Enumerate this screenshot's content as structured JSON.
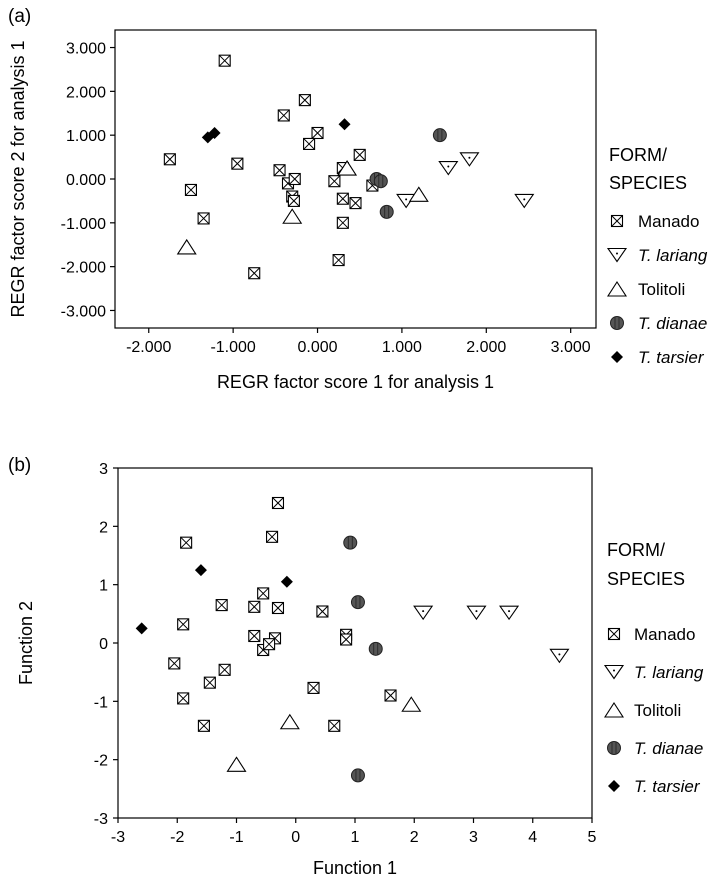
{
  "chart_data": [
    {
      "panel_label": "(a)",
      "type": "scatter",
      "xlabel": "REGR factor score 1 for analysis 1",
      "ylabel": "REGR factor score 2 for analysis 1",
      "xlim": [
        -2.4,
        3.3
      ],
      "ylim": [
        -3.4,
        3.4
      ],
      "xticks": [
        -2.0,
        -1.0,
        0.0,
        1.0,
        2.0,
        3.0
      ],
      "xtick_labels": [
        "-2.000",
        "-1.000",
        "0.000",
        "1.000",
        "2.000",
        "3.000"
      ],
      "yticks": [
        3.0,
        2.0,
        1.0,
        0.0,
        -1.0,
        -2.0,
        -3.0
      ],
      "ytick_labels": [
        "3.000",
        "2.000",
        "1.000",
        "0.000",
        "-1.000",
        "-2.000",
        "-3.000"
      ],
      "legend_title": [
        "FORM/",
        "SPECIES"
      ],
      "legend_position": "right",
      "series": [
        {
          "name": "Manado",
          "italic": false,
          "marker": "boxx",
          "x": [
            -1.1,
            -0.15,
            -0.4,
            0.0,
            -0.1,
            -1.75,
            -0.95,
            0.5,
            0.3,
            0.2,
            -0.45,
            -0.35,
            -0.27,
            -1.5,
            -0.3,
            -0.28,
            0.45,
            0.3,
            0.65,
            -1.35,
            0.3,
            -0.75,
            0.25
          ],
          "y": [
            2.7,
            1.8,
            1.45,
            1.05,
            0.8,
            0.45,
            0.35,
            0.55,
            0.25,
            -0.05,
            0.2,
            -0.1,
            0.0,
            -0.25,
            -0.4,
            -0.5,
            -0.55,
            -0.45,
            -0.15,
            -0.9,
            -1.0,
            -2.15,
            -1.85
          ]
        },
        {
          "name": "T. lariang",
          "italic": true,
          "marker": "tri-down",
          "x": [
            1.8,
            1.55,
            1.05,
            2.45
          ],
          "y": [
            0.45,
            0.25,
            -0.5,
            -0.5
          ]
        },
        {
          "name": "Tolitoli",
          "italic": false,
          "marker": "tri-up",
          "x": [
            1.2,
            0.35,
            -0.3,
            -1.55
          ],
          "y": [
            -0.35,
            0.25,
            -0.85,
            -1.55
          ]
        },
        {
          "name": "T. dianae",
          "italic": true,
          "marker": "circle",
          "x": [
            1.45,
            0.7,
            0.75,
            0.82
          ],
          "y": [
            1.0,
            0.0,
            -0.05,
            -0.75
          ]
        },
        {
          "name": "T. tarsier",
          "italic": true,
          "marker": "diamond",
          "x": [
            -1.3,
            -1.22,
            0.32
          ],
          "y": [
            0.95,
            1.05,
            1.25
          ]
        }
      ]
    },
    {
      "panel_label": "(b)",
      "type": "scatter",
      "xlabel": "Function 1",
      "ylabel": "Function 2",
      "xlim": [
        -3,
        5
      ],
      "ylim": [
        -3,
        3
      ],
      "xticks": [
        -3,
        -2,
        -1,
        0,
        1,
        2,
        3,
        4,
        5
      ],
      "xtick_labels": [
        "-3",
        "-2",
        "-1",
        "0",
        "1",
        "2",
        "3",
        "4",
        "5"
      ],
      "yticks": [
        3,
        2,
        1,
        0,
        -1,
        -2,
        -3
      ],
      "ytick_labels": [
        "3",
        "2",
        "1",
        "0",
        "-1",
        "-2",
        "-3"
      ],
      "legend_title": [
        "FORM/",
        "SPECIES"
      ],
      "legend_position": "right",
      "series": [
        {
          "name": "Manado",
          "italic": false,
          "marker": "boxx",
          "x": [
            -0.3,
            -0.4,
            -1.85,
            -1.25,
            -0.3,
            -0.7,
            -0.55,
            -0.55,
            -0.7,
            -0.35,
            -0.45,
            0.45,
            0.85,
            0.85,
            -1.9,
            -2.05,
            -1.2,
            -1.45,
            -1.9,
            -1.55,
            0.3,
            0.65,
            1.6
          ],
          "y": [
            2.4,
            1.82,
            1.72,
            0.65,
            0.6,
            0.62,
            0.85,
            -0.12,
            0.12,
            0.08,
            -0.02,
            0.54,
            0.14,
            0.06,
            0.32,
            -0.35,
            -0.46,
            -0.68,
            -0.95,
            -1.42,
            -0.77,
            -1.42,
            -0.9
          ]
        },
        {
          "name": "T. lariang",
          "italic": true,
          "marker": "tri-down",
          "x": [
            2.15,
            3.05,
            3.6,
            4.45
          ],
          "y": [
            0.52,
            0.52,
            0.52,
            -0.22
          ]
        },
        {
          "name": "Tolitoli",
          "italic": false,
          "marker": "tri-up",
          "x": [
            1.95,
            -0.1,
            -1.0
          ],
          "y": [
            -1.05,
            -1.35,
            -2.08
          ]
        },
        {
          "name": "T. dianae",
          "italic": true,
          "marker": "circle",
          "x": [
            0.92,
            1.05,
            1.35,
            1.05
          ],
          "y": [
            1.72,
            0.7,
            -0.1,
            -2.27
          ]
        },
        {
          "name": "T. tarsier",
          "italic": true,
          "marker": "diamond",
          "x": [
            -1.6,
            -0.15,
            -2.6
          ],
          "y": [
            1.25,
            1.05,
            0.25
          ]
        }
      ]
    }
  ]
}
